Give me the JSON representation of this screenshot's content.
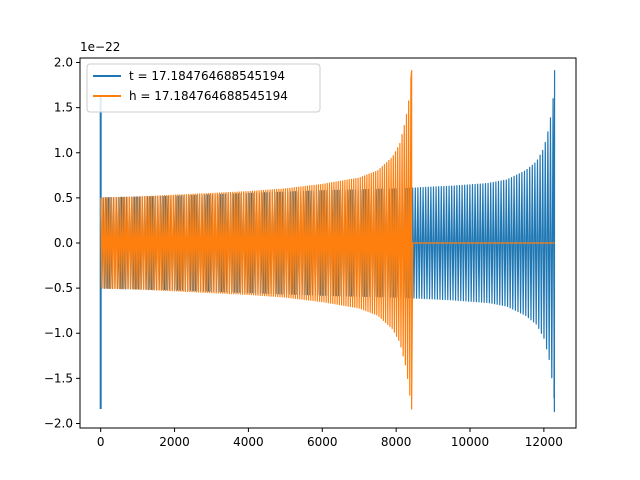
{
  "chart_data": {
    "type": "line",
    "title": "",
    "xlabel": "",
    "ylabel": "",
    "y_offset_text": "1e−22",
    "xlim": [
      -560,
      12870
    ],
    "ylim": [
      -2.05,
      2.05
    ],
    "x_ticks": [
      {
        "value": 0,
        "label": "0"
      },
      {
        "value": 2000,
        "label": "2000"
      },
      {
        "value": 4000,
        "label": "4000"
      },
      {
        "value": 6000,
        "label": "6000"
      },
      {
        "value": 8000,
        "label": "8000"
      },
      {
        "value": 10000,
        "label": "10000"
      },
      {
        "value": 12000,
        "label": "12000"
      }
    ],
    "y_ticks": [
      {
        "value": 2.0,
        "label": "2.0"
      },
      {
        "value": 1.5,
        "label": "1.5"
      },
      {
        "value": 1.0,
        "label": "1.0"
      },
      {
        "value": 0.5,
        "label": "0.5"
      },
      {
        "value": 0.0,
        "label": "0.0"
      },
      {
        "value": -0.5,
        "label": "−0.5"
      },
      {
        "value": -1.0,
        "label": "−1.0"
      },
      {
        "value": -1.5,
        "label": "−1.5"
      },
      {
        "value": -2.0,
        "label": "−2.0"
      }
    ],
    "grid": false,
    "legend_position": "top-left",
    "series": [
      {
        "name": "t = 17.184764688545194",
        "color": "#1f77b4",
        "description_points": {
          "start_spike": {
            "x": 0,
            "min": -1.84,
            "max": 1.64
          },
          "envelope_x": [
            0,
            2000,
            4000,
            6000,
            8000,
            8500,
            9500,
            10500,
            11000,
            11500,
            11800,
            12000,
            12150,
            12250,
            12290
          ],
          "envelope_amp": [
            0.5,
            0.52,
            0.55,
            0.58,
            0.6,
            0.61,
            0.63,
            0.66,
            0.7,
            0.8,
            0.9,
            1.05,
            1.3,
            1.6,
            1.91
          ],
          "end_x": 12290,
          "end_min": -1.72,
          "end_max": 1.91
        }
      },
      {
        "name": "h = 17.184764688545194",
        "color": "#ff7f0e",
        "description_points": {
          "envelope_x": [
            0,
            1000,
            2000,
            3000,
            4000,
            5000,
            6000,
            7000,
            7500,
            7900,
            8100,
            8250,
            8350,
            8420
          ],
          "envelope_amp": [
            0.5,
            0.51,
            0.53,
            0.55,
            0.57,
            0.6,
            0.65,
            0.72,
            0.8,
            0.95,
            1.1,
            1.35,
            1.6,
            1.91
          ],
          "end_x": 8420,
          "end_min": -1.84,
          "end_max": 1.91,
          "flat_after_x": [
            8450,
            12290
          ],
          "flat_value": 0.0
        }
      }
    ]
  }
}
